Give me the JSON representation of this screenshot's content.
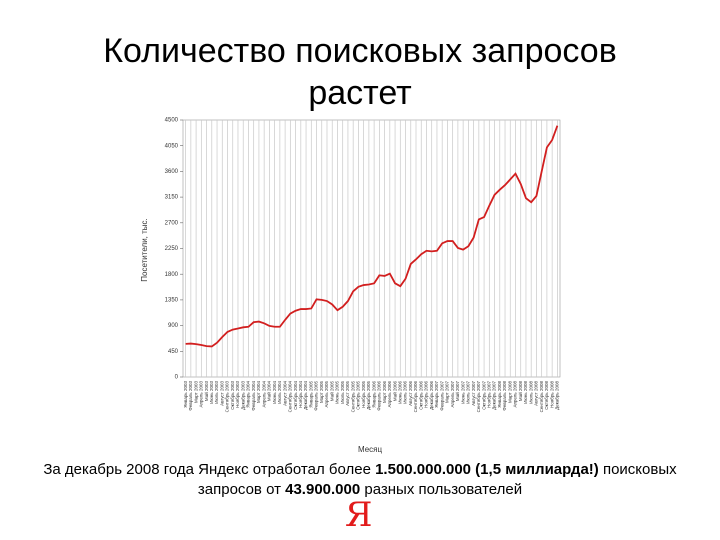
{
  "slide": {
    "title": "Количество поисковых запросов растет",
    "caption": [
      {
        "text": "За декабрь 2008 года Яндекс отработал более ",
        "bold": false
      },
      {
        "text": "1.500.000.000 (1,5 миллиарда!)",
        "bold": true
      },
      {
        "text": " поисковых запросов от ",
        "bold": false
      },
      {
        "text": "43.900.000",
        "bold": true
      },
      {
        "text": " разных пользователей",
        "bold": false
      }
    ],
    "logo": "Я"
  },
  "chart_data": {
    "type": "line",
    "x_label": "Месяц",
    "y_label": "Посетители, тыс.",
    "categories": [
      "Январь 2003",
      "Февраль 2003",
      "Март 2003",
      "Апрель 2003",
      "Май 2003",
      "Июнь 2003",
      "Июль 2003",
      "Август 2003",
      "Сентябрь 2003",
      "Октябрь 2003",
      "Ноябрь 2003",
      "Декабрь 2003",
      "Январь 2004",
      "Февраль 2004",
      "Март 2004",
      "Апрель 2004",
      "Май 2004",
      "Июнь 2004",
      "Июль 2004",
      "Август 2004",
      "Сентябрь 2004",
      "Октябрь 2004",
      "Ноябрь 2004",
      "Декабрь 2004",
      "Январь 2005",
      "Февраль 2005",
      "Март 2005",
      "Апрель 2005",
      "Май 2005",
      "Июнь 2005",
      "Июль 2005",
      "Август 2005",
      "Сентябрь 2005",
      "Октябрь 2005",
      "Ноябрь 2005",
      "Декабрь 2005",
      "Январь 2006",
      "Февраль 2006",
      "Март 2006",
      "Апрель 2006",
      "Май 2006",
      "Июнь 2006",
      "Июль 2006",
      "Август 2006",
      "Сентябрь 2006",
      "Октябрь 2006",
      "Ноябрь 2006",
      "Декабрь 2006",
      "Январь 2007",
      "Февраль 2007",
      "Март 2007",
      "Апрель 2007",
      "Май 2007",
      "Июнь 2007",
      "Июль 2007",
      "Август 2007",
      "Сентябрь 2007",
      "Октябрь 2007",
      "Ноябрь 2007",
      "Декабрь 2007",
      "Январь 2008",
      "Февраль 2008",
      "Март 2008",
      "Апрель 2008",
      "Май 2008",
      "Июнь 2008",
      "Июль 2008",
      "Август 2008",
      "Сентябрь 2008",
      "Октябрь 2008",
      "Ноябрь 2008",
      "Декабрь 2008"
    ],
    "series": [
      {
        "name": "Посетители",
        "color": "#d21f1f",
        "values": [
          580,
          585,
          575,
          560,
          540,
          535,
          600,
          700,
          790,
          830,
          850,
          870,
          880,
          960,
          970,
          940,
          895,
          880,
          880,
          1000,
          1110,
          1160,
          1190,
          1190,
          1200,
          1360,
          1350,
          1330,
          1270,
          1170,
          1230,
          1330,
          1500,
          1580,
          1610,
          1620,
          1640,
          1780,
          1770,
          1810,
          1640,
          1590,
          1720,
          1980,
          2060,
          2150,
          2210,
          2200,
          2210,
          2340,
          2380,
          2380,
          2260,
          2230,
          2290,
          2440,
          2760,
          2800,
          3000,
          3190,
          3280,
          3360,
          3460,
          3560,
          3380,
          3130,
          3060,
          3170,
          3600,
          4020,
          4150,
          4400
        ]
      }
    ],
    "ylim": [
      0,
      4500
    ],
    "yticks": [
      0,
      450,
      900,
      1350,
      1800,
      2250,
      2700,
      3150,
      3600,
      4050,
      4500
    ],
    "grid": "x"
  }
}
